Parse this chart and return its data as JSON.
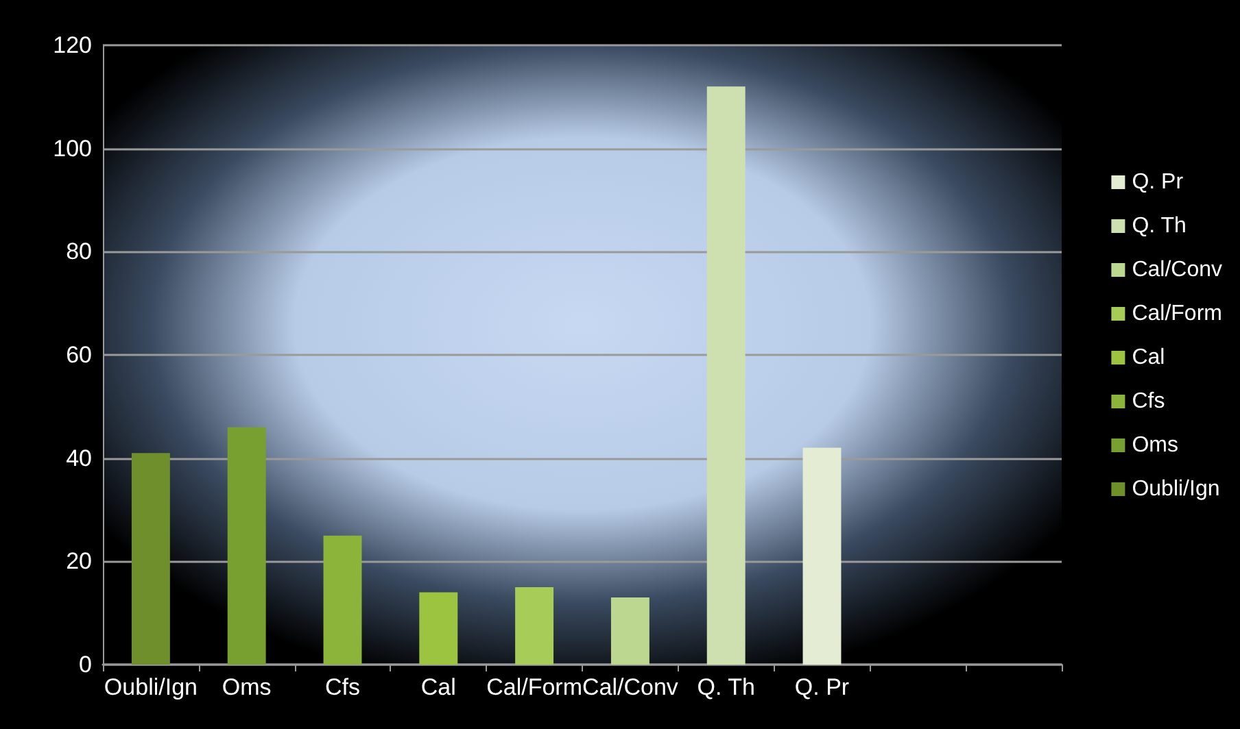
{
  "chart_data": {
    "type": "bar",
    "categories": [
      "Oubli/Ign",
      "Oms",
      "Cfs",
      "Cal",
      "Cal/Form",
      "Cal/Conv",
      "Q. Th",
      "Q. Pr",
      null,
      null
    ],
    "series": [
      {
        "name": "Oubli/Ign",
        "color": "#6e8f2c",
        "values": [
          41,
          null,
          null,
          null,
          null,
          null,
          null,
          null,
          null,
          null
        ]
      },
      {
        "name": "Oms",
        "color": "#78a030",
        "values": [
          null,
          46,
          null,
          null,
          null,
          null,
          null,
          null,
          null,
          null
        ]
      },
      {
        "name": "Cfs",
        "color": "#8cb43a",
        "values": [
          null,
          null,
          25,
          null,
          null,
          null,
          null,
          null,
          null,
          null
        ]
      },
      {
        "name": "Cal",
        "color": "#9cc440",
        "values": [
          null,
          null,
          null,
          14,
          null,
          null,
          null,
          null,
          null,
          null
        ]
      },
      {
        "name": "Cal/Form",
        "color": "#a8cc58",
        "values": [
          null,
          null,
          null,
          null,
          15,
          null,
          null,
          null,
          null,
          null
        ]
      },
      {
        "name": "Cal/Conv",
        "color": "#bcd890",
        "values": [
          null,
          null,
          null,
          null,
          null,
          13,
          null,
          null,
          null,
          null
        ]
      },
      {
        "name": "Q. Th",
        "color": "#cfe0b0",
        "values": [
          null,
          null,
          null,
          null,
          null,
          null,
          112,
          null,
          null,
          null
        ]
      },
      {
        "name": "Q. Pr",
        "color": "#e4edd4",
        "values": [
          null,
          null,
          null,
          null,
          null,
          null,
          null,
          42,
          null,
          null
        ]
      }
    ],
    "stacked": true,
    "ylim": [
      0,
      120
    ],
    "yticks": [
      0,
      20,
      40,
      60,
      80,
      100,
      120
    ],
    "grid": "y",
    "legend": "right"
  }
}
